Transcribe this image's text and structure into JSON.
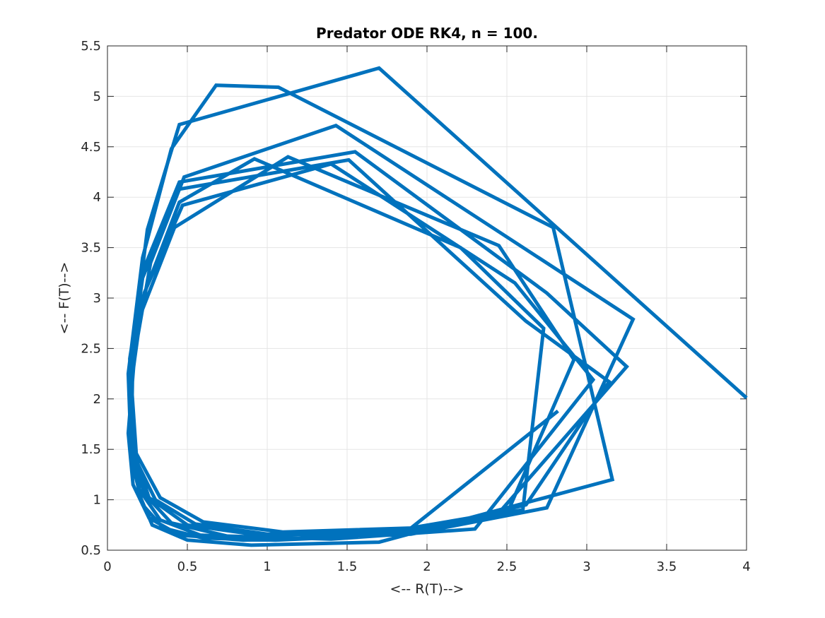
{
  "chart_data": {
    "type": "line",
    "title": "Predator ODE RK4, n = 100.",
    "xlabel": "<-- R(T)-->",
    "ylabel": "<-- F(T)-->",
    "xlim": [
      0,
      4
    ],
    "ylim": [
      0.5,
      5.5
    ],
    "xticks": [
      "0",
      "0.5",
      "1",
      "1.5",
      "2",
      "2.5",
      "3",
      "3.5",
      "4"
    ],
    "yticks": [
      "0.5",
      "1",
      "1.5",
      "2",
      "2.5",
      "3",
      "3.5",
      "4",
      "4.5",
      "5",
      "5.5"
    ],
    "grid": true,
    "line_color": "#0072BD",
    "series": [
      {
        "x": [
          4.0,
          1.7,
          0.45,
          0.25,
          0.16,
          0.15,
          0.2,
          0.28,
          0.5,
          0.9,
          1.7,
          3.16,
          2.79,
          1.07,
          0.68,
          0.4,
          0.22,
          0.13,
          0.15,
          0.22,
          0.35,
          0.6,
          1.05,
          1.9,
          2.75,
          3.29,
          1.43,
          0.48,
          0.27,
          0.17,
          0.13,
          0.16,
          0.26,
          0.45,
          0.85,
          1.6,
          2.45,
          3.25,
          2.75,
          1.55,
          0.45,
          0.23,
          0.14,
          0.14,
          0.2,
          0.33,
          0.58,
          1.1,
          1.95,
          2.62,
          3.14,
          2.62,
          1.51,
          0.45,
          0.22,
          0.14,
          0.15,
          0.23,
          0.4,
          0.75,
          1.4,
          2.3,
          3.04,
          2.55,
          1.4,
          0.47,
          0.23,
          0.14,
          0.16,
          0.26,
          0.5,
          0.95,
          1.75,
          2.5,
          2.92,
          2.45,
          1.13,
          0.42,
          0.21,
          0.14,
          0.17,
          0.3,
          0.55,
          1.0,
          1.8,
          2.6,
          2.73,
          2.21,
          0.92,
          0.45,
          0.22,
          0.15,
          0.18,
          0.33,
          0.6,
          1.1,
          1.9,
          2.82
        ],
        "y": [
          2.01,
          5.28,
          4.72,
          3.68,
          2.55,
          1.58,
          1.05,
          0.75,
          0.6,
          0.55,
          0.58,
          1.2,
          3.7,
          5.09,
          5.11,
          4.48,
          3.4,
          2.25,
          1.4,
          0.95,
          0.72,
          0.62,
          0.6,
          0.66,
          0.92,
          2.79,
          4.71,
          4.2,
          3.35,
          2.44,
          1.66,
          1.15,
          0.82,
          0.65,
          0.6,
          0.64,
          0.87,
          2.32,
          3.05,
          4.45,
          4.15,
          3.3,
          2.4,
          1.62,
          1.1,
          0.8,
          0.65,
          0.61,
          0.69,
          0.95,
          2.17,
          2.77,
          4.37,
          4.08,
          3.2,
          2.3,
          1.56,
          1.06,
          0.77,
          0.64,
          0.61,
          0.71,
          2.19,
          3.15,
          4.33,
          3.92,
          3.05,
          2.2,
          1.5,
          1.02,
          0.75,
          0.65,
          0.67,
          0.86,
          2.39,
          3.52,
          4.4,
          3.7,
          2.85,
          2.05,
          1.42,
          1.0,
          0.76,
          0.66,
          0.69,
          0.9,
          2.7,
          3.5,
          4.38,
          3.95,
          3.0,
          2.15,
          1.46,
          1.02,
          0.78,
          0.68,
          0.72,
          1.88
        ]
      }
    ]
  }
}
